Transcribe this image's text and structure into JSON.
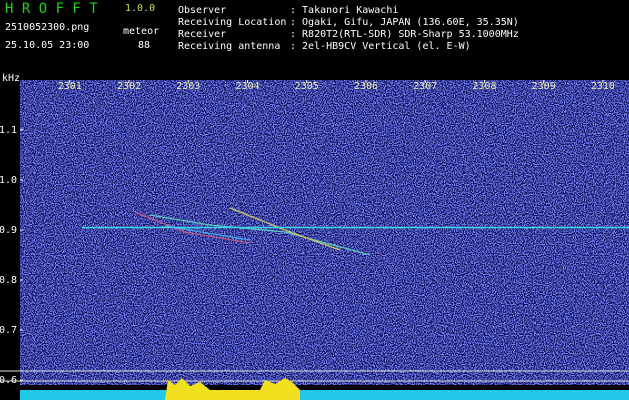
{
  "header": {
    "title": "H R O F F T",
    "version": "1.0.0",
    "file": "2510052300.png",
    "datetime": "25.10.05 23:00",
    "mode": "meteor",
    "count": 88,
    "rows": [
      [
        "Observer",
        ": Takanori Kawachi"
      ],
      [
        "Receiving Location",
        ": Ogaki, Gifu, JAPAN (136.60E, 35.35N)"
      ],
      [
        "Receiver",
        ": R820T2(RTL-SDR) SDR-Sharp 53.1000MHz"
      ],
      [
        "Receiving antenna",
        ": 2el-HB9CV Vertical (el. E-W)"
      ]
    ]
  },
  "chart_data": {
    "type": "spectrogram",
    "y_label": "kHz",
    "xlim": [
      2300.16,
      2310.44
    ],
    "xticks": [
      2301,
      2302,
      2303,
      2304,
      2305,
      2306,
      2307,
      2308,
      2309,
      2310
    ],
    "ylim": [
      0.56,
      1.2
    ],
    "yticks": [
      1.1,
      {
        "value": 1.0,
        "label": "1.0"
      },
      0.9,
      0.8,
      0.7,
      0.6
    ],
    "carrier_khz": 0.905,
    "carrier_color": "#3ad8e8"
  }
}
